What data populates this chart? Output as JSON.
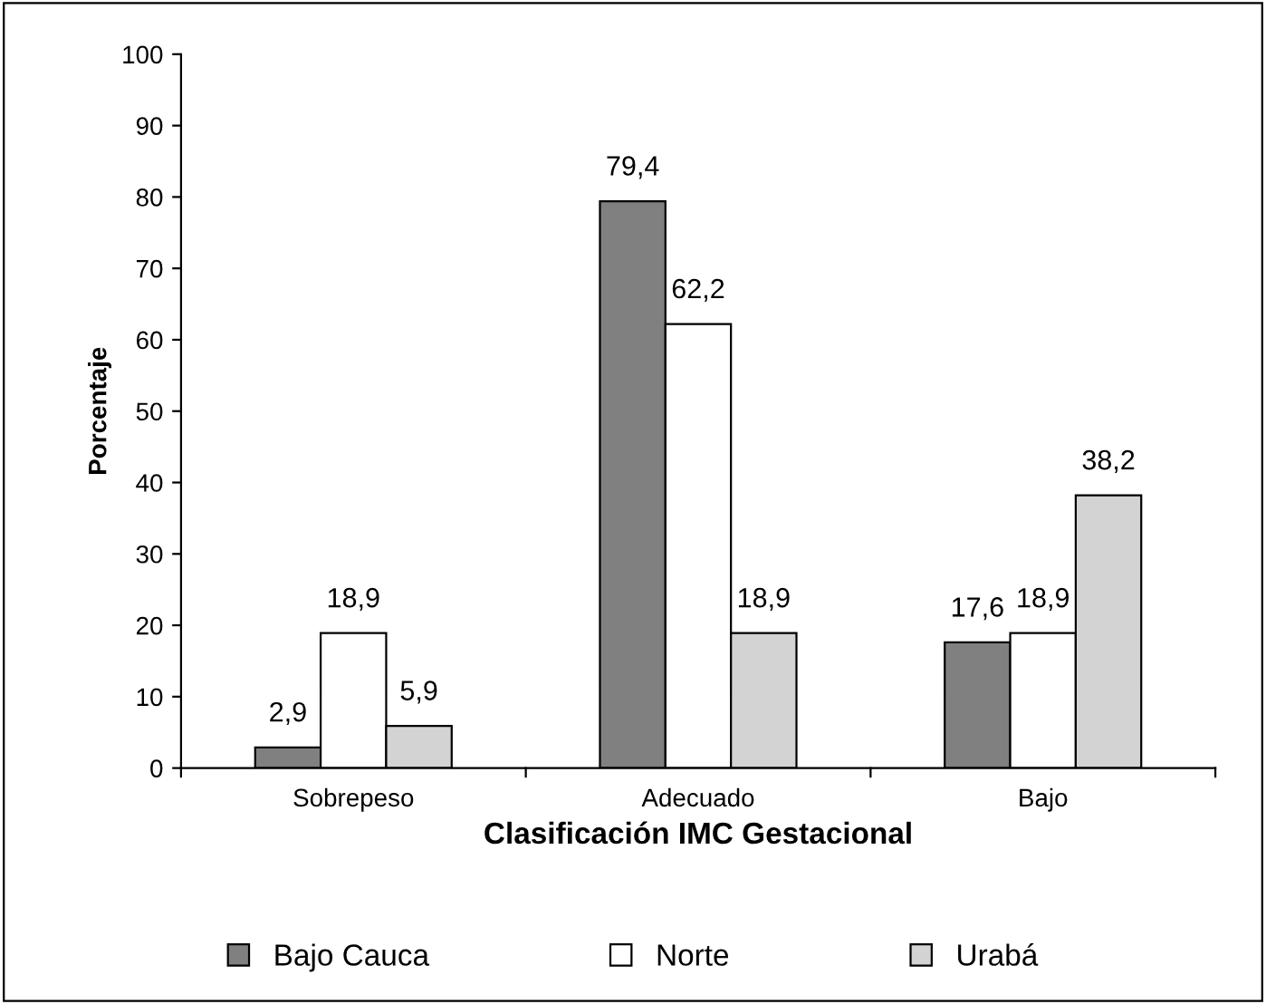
{
  "chart_data": {
    "type": "bar",
    "xlabel": "Clasificación IMC Gestacional",
    "ylabel": "Porcentaje",
    "categories": [
      "Sobrepeso",
      "Adecuado",
      "Bajo"
    ],
    "series": [
      {
        "name": "Bajo Cauca",
        "color": "#808080",
        "values": [
          2.9,
          79.4,
          17.6
        ],
        "value_labels": [
          "2,9",
          "79,4",
          "17,6"
        ]
      },
      {
        "name": "Norte",
        "color": "#ffffff",
        "values": [
          18.9,
          62.2,
          18.9
        ],
        "value_labels": [
          "18,9",
          "62,2",
          "18,9"
        ]
      },
      {
        "name": "Urabá",
        "color": "#d3d3d3",
        "values": [
          5.9,
          18.9,
          38.2
        ],
        "value_labels": [
          "5,9",
          "18,9",
          "38,2"
        ]
      }
    ],
    "ylim": [
      0,
      100
    ],
    "yticks": [
      0,
      10,
      20,
      30,
      40,
      50,
      60,
      70,
      80,
      90,
      100
    ],
    "grid": false,
    "legend": "bottom"
  }
}
